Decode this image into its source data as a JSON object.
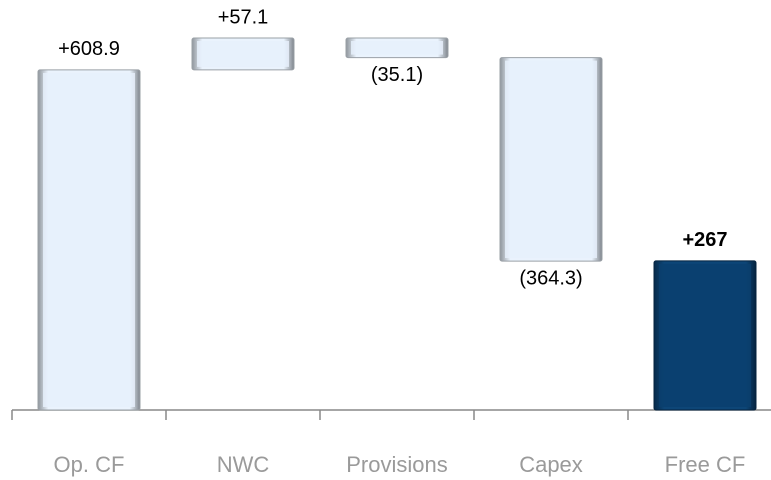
{
  "chart_data": {
    "type": "waterfall",
    "categories": [
      "Op. CF",
      "NWC",
      "Provisions",
      "Capex",
      "Free CF"
    ],
    "values": [
      608.9,
      57.1,
      -35.1,
      -364.3,
      267
    ],
    "value_labels": [
      "+608.9",
      "+57.1",
      "(35.1)",
      "(364.3)",
      "+267"
    ],
    "is_total": [
      false,
      false,
      false,
      false,
      true
    ],
    "colors": [
      "#e6f0fb",
      "#e6f0fb",
      "#e6f0fb",
      "#e6f0fb",
      "#0b3f6e"
    ]
  }
}
